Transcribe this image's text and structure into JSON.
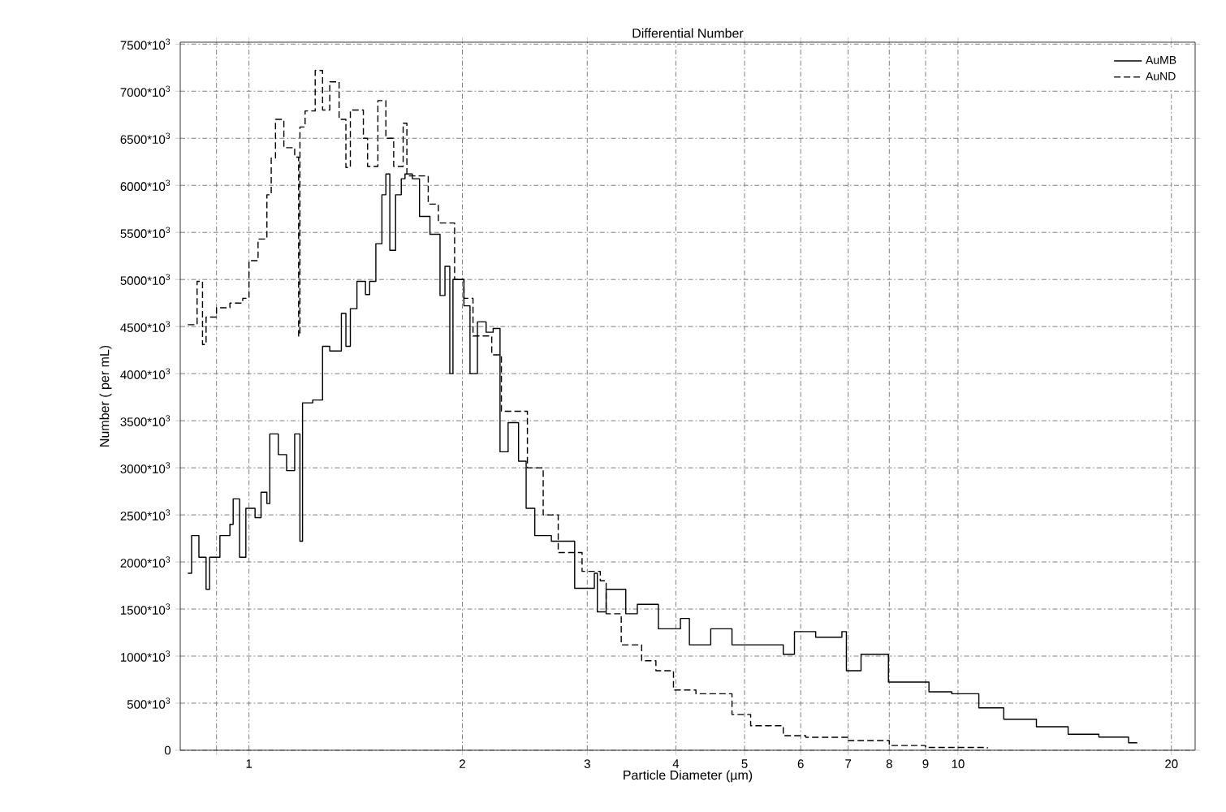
{
  "chart_data": {
    "type": "step",
    "title": "Differential Number",
    "xlabel": "Particle Diameter (µm)",
    "ylabel": "Number ( per mL)",
    "log": "x",
    "grid": true,
    "legend": "top right",
    "marker": "none",
    "xlim": [
      0.8,
      21.6
    ],
    "ylim": [
      0,
      7520000
    ],
    "xticks": [
      {
        "value": 0.9,
        "label": null
      },
      1,
      2,
      3,
      4,
      5,
      6,
      7,
      8,
      9,
      10,
      20
    ],
    "yticks": [
      0,
      {
        "value": 500000,
        "label": "500*10$^{3}$"
      },
      {
        "value": 1000000,
        "label": "1000*10$^{3}$"
      },
      {
        "value": 1500000,
        "label": "1500*10$^{3}$"
      },
      {
        "value": 2000000,
        "label": "2000*10$^{3}$"
      },
      {
        "value": 2500000,
        "label": "2500*10$^{3}$"
      },
      {
        "value": 3000000,
        "label": "3000*10$^{3}$"
      },
      {
        "value": 3500000,
        "label": "3500*10$^{3}$"
      },
      {
        "value": 4000000,
        "label": "4000*10$^{3}$"
      },
      {
        "value": 4500000,
        "label": "4500*10$^{3}$"
      },
      {
        "value": 5000000,
        "label": "5000*10$^{3}$"
      },
      {
        "value": 5500000,
        "label": "5500*10$^{3}$"
      },
      {
        "value": 6000000,
        "label": "6000*10$^{3}$"
      },
      {
        "value": 6500000,
        "label": "6500*10$^{3}$"
      },
      {
        "value": 7000000,
        "label": "7000*10$^{3}$"
      },
      {
        "value": 7500000,
        "label": "7500*10$^{3}$"
      }
    ],
    "series": [
      {
        "name": "AuMB",
        "color": "#000000",
        "line_style": "solid",
        "x": [
          0.82,
          0.83,
          0.85,
          0.87,
          0.88,
          0.91,
          0.94,
          0.95,
          0.97,
          0.99,
          1.02,
          1.04,
          1.06,
          1.07,
          1.1,
          1.13,
          1.16,
          1.18,
          1.19,
          1.23,
          1.27,
          1.3,
          1.35,
          1.37,
          1.39,
          1.42,
          1.46,
          1.48,
          1.51,
          1.54,
          1.56,
          1.58,
          1.61,
          1.64,
          1.66,
          1.7,
          1.74,
          1.8,
          1.86,
          1.89,
          1.92,
          1.94,
          2.01,
          2.05,
          2.1,
          2.16,
          2.21,
          2.26,
          2.32,
          2.4,
          2.46,
          2.53,
          2.67,
          2.88,
          3.07,
          3.1,
          3.19,
          3.4,
          3.53,
          3.78,
          4.06,
          4.18,
          4.48,
          4.8,
          5.1,
          5.67,
          5.88,
          6.3,
          6.86,
          6.96,
          7.3,
          7.98,
          8.5,
          9.1,
          9.8,
          10.7,
          11.6,
          12.9,
          14.3,
          15.8,
          17.4,
          17.9
        ],
        "values": [
          1880000,
          2280000,
          2050000,
          1710000,
          2050000,
          2280000,
          2400000,
          2670000,
          2050000,
          2570000,
          2470000,
          2740000,
          2620000,
          3360000,
          3140000,
          2970000,
          3360000,
          2220000,
          3690000,
          3720000,
          4290000,
          4240000,
          4640000,
          4290000,
          4690000,
          4980000,
          4840000,
          4980000,
          5380000,
          5900000,
          6120000,
          5310000,
          5900000,
          6070000,
          6120000,
          6070000,
          5670000,
          5480000,
          4830000,
          5140000,
          4000000,
          5000000,
          4720000,
          4000000,
          4550000,
          4440000,
          4480000,
          3170000,
          3480000,
          3070000,
          2570000,
          2280000,
          2220000,
          1720000,
          1880000,
          1470000,
          1710000,
          1450000,
          1550000,
          1290000,
          1400000,
          1120000,
          1290000,
          1120000,
          1120000,
          1020000,
          1260000,
          1200000,
          1260000,
          845000,
          1020000,
          724000,
          724000,
          620000,
          600000,
          450000,
          330000,
          250000,
          170000,
          140000,
          80000,
          80000
        ]
      },
      {
        "name": "AuND",
        "color": "#000000",
        "line_style": "dashed",
        "x": [
          0.82,
          0.845,
          0.86,
          0.87,
          0.9,
          0.94,
          0.98,
          1.0,
          1.03,
          1.06,
          1.075,
          1.09,
          1.12,
          1.16,
          1.175,
          1.18,
          1.2,
          1.24,
          1.27,
          1.3,
          1.34,
          1.37,
          1.39,
          1.45,
          1.47,
          1.52,
          1.56,
          1.6,
          1.65,
          1.67,
          1.79,
          1.85,
          1.95,
          2.01,
          2.07,
          2.2,
          2.27,
          2.47,
          2.6,
          2.73,
          2.95,
          3.13,
          3.19,
          3.35,
          3.58,
          3.75,
          3.97,
          4.27,
          4.8,
          5.1,
          5.67,
          6.1,
          7.0,
          8.0,
          9.0,
          11.0
        ],
        "values": [
          4520000,
          4980000,
          4310000,
          4600000,
          4700000,
          4750000,
          4800000,
          5200000,
          5430000,
          5900000,
          6290000,
          6700000,
          6400000,
          6300000,
          4400000,
          6620000,
          6790000,
          7220000,
          6800000,
          7100000,
          6700000,
          6190000,
          6800000,
          6500000,
          6200000,
          6900000,
          6500000,
          6200000,
          6660000,
          6100000,
          5800000,
          5600000,
          5000000,
          4800000,
          4400000,
          4200000,
          3600000,
          3000000,
          2500000,
          2100000,
          1900000,
          1800000,
          1450000,
          1120000,
          950000,
          845000,
          640000,
          600000,
          380000,
          260000,
          155000,
          138000,
          103000,
          50000,
          30000,
          20000
        ]
      }
    ]
  }
}
